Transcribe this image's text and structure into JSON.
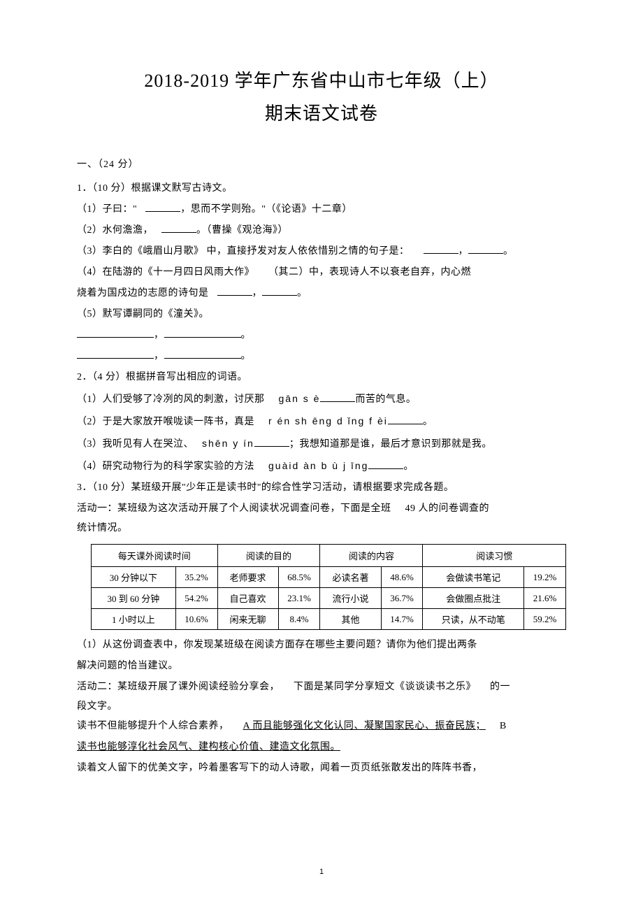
{
  "title": {
    "line1": "2018-2019 学年广东省中山市七年级（上）",
    "line2": "期末语文试卷"
  },
  "section1_header": "一、（24 分）",
  "q1": {
    "stem": "1．（10 分）根据课文默写古诗文。",
    "s1_a": "（1）子曰：\"",
    "s1_b": "，思而不学则殆。\"（《论语》十二章）",
    "s2_a": "（2）水何澹澹，",
    "s2_b": "。（曹操《观沧海》）",
    "s3_a": "（3）李白的《峨眉山月歌》 中，直接抒发对友人依依惜别之情的句子是：",
    "s3_b": "，",
    "s3_c": "。",
    "s4_a": "（4）在陆游的《十一月四日风雨大作》",
    "s4_b": "（其二）中，表现诗人不以衰老自弃，内心燃",
    "s4_c": "烧着为国戍边的志愿的诗句是",
    "s4_d": "，",
    "s4_e": "。",
    "s5": "（5）默写谭嗣同的《潼关》。",
    "s5_sep": "，",
    "s5_end": "。"
  },
  "q2": {
    "stem": "2．（4 分）根据拼音写出相应的词语。",
    "s1_a": "（1）人们受够了冷冽的风的刺激，讨厌那",
    "s1_pinyin": "gān s è",
    "s1_b": "而苦的气息。",
    "s2_a": "（2）于是大家放开喉咙读一阵书，真是",
    "s2_pinyin": "r én sh ēng d ǐng f èi",
    "s2_b": "。",
    "s3_a": "（3）我听见有人在哭泣、",
    "s3_pinyin": "shēn y ín",
    "s3_b": "；我想知道那是谁，最后才意识到那就是我。",
    "s4_a": "（4）研究动物行为的科学家实验的方法",
    "s4_pinyin": "guàid àn b ù j īng",
    "s4_b": "。"
  },
  "q3": {
    "stem": "3．（10 分）某班级开展\"少年正是读书时\"的综合性学习活动，请根据要求完成各题。",
    "act1_a": "活动一：某班级为这次活动开展了个人阅读状况调查问卷，下面是全班",
    "act1_b": "49 人的问卷调查的",
    "act1_c": "统计情况。"
  },
  "table": {
    "headers": [
      "每天课外阅读时间",
      "阅读的目的",
      "阅读的内容",
      "阅读习惯"
    ],
    "rows": [
      [
        "30 分钟以下",
        "35.2%",
        "老师要求",
        "68.5%",
        "必读名著",
        "48.6%",
        "会做读书笔记",
        "19.2%"
      ],
      [
        "30 到 60 分钟",
        "54.2%",
        "自己喜欢",
        "23.1%",
        "流行小说",
        "36.7%",
        "会做圈点批注",
        "21.6%"
      ],
      [
        "1 小时以上",
        "10.6%",
        "闲来无聊",
        "8.4%",
        "其他",
        "14.7%",
        "只读，从不动笔",
        "59.2%"
      ]
    ]
  },
  "q3_after": {
    "s1_a": "（1）从这份调查表中，你发现某班级在阅读方面存在哪些主要问题？请你为他们提出两条",
    "s1_b": "解决问题的恰当建议。",
    "act2_a": "活动二：某班级开展了课外阅读经验分享会，",
    "act2_b": "下面是某同学分享短文《谈谈读书之乐》",
    "act2_c": "的一",
    "act2_d": "段文字。",
    "para_a": "读书不但能够提升个人综合素养，",
    "para_b": "A 而且能够强化文化认同、凝聚国家民心、振奋民族；",
    "para_c": "B",
    "para_d": "读书也能够淳化社会风气、建构核心价值、建造文化氛围。",
    "last": "读着文人留下的优美文字，吟着墨客写下的动人诗歌，闻着一页页纸张散发出的阵阵书香，"
  },
  "page_number": "1"
}
